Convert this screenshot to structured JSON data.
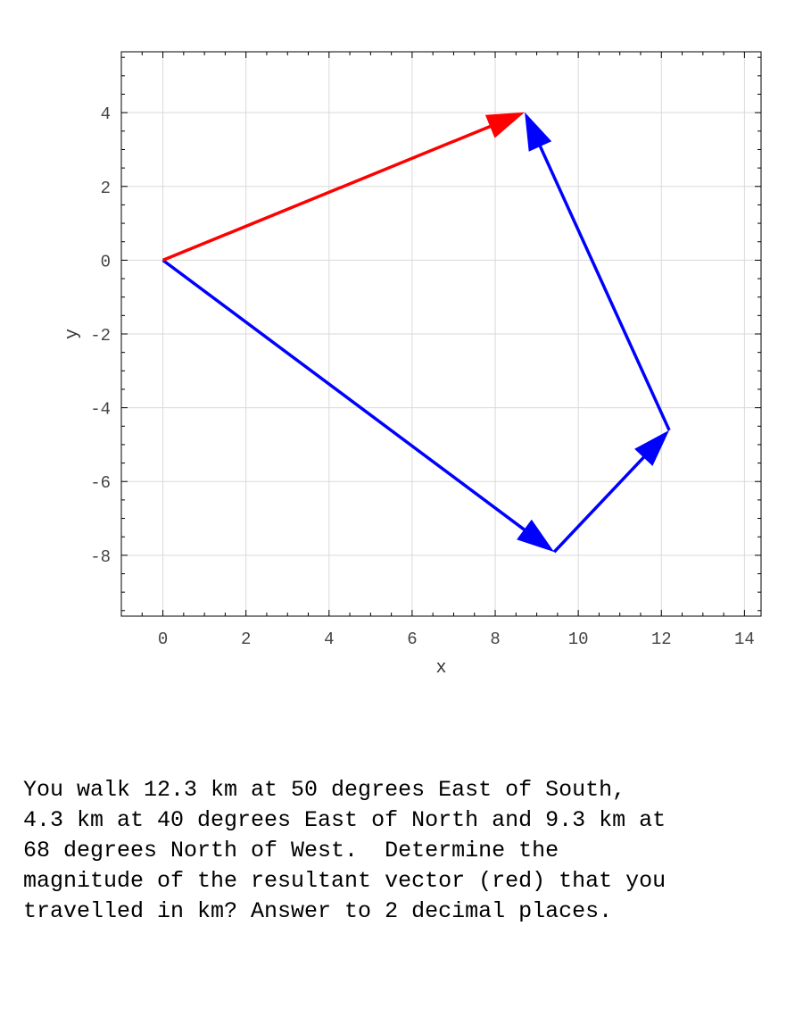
{
  "chart_data": {
    "type": "vector-plot",
    "xlabel": "x",
    "ylabel": "y",
    "xlim": [
      -1,
      14.4
    ],
    "ylim": [
      -9.65,
      5.65
    ],
    "xticks": [
      0,
      2,
      4,
      6,
      8,
      10,
      12,
      14
    ],
    "yticks": [
      4,
      2,
      0,
      -2,
      -4,
      -6,
      -8
    ],
    "grid": true,
    "vectors": [
      {
        "from": [
          0,
          0
        ],
        "to": [
          9.42,
          -7.91
        ],
        "color": "#0000ff"
      },
      {
        "from": [
          9.42,
          -7.91
        ],
        "to": [
          12.19,
          -4.61
        ],
        "color": "#0000ff"
      },
      {
        "from": [
          12.19,
          -4.61
        ],
        "to": [
          8.71,
          4.01
        ],
        "color": "#0000ff"
      },
      {
        "from": [
          0,
          0
        ],
        "to": [
          8.71,
          4.01
        ],
        "color": "#ff0000"
      }
    ]
  },
  "question": {
    "lines": [
      "You walk 12.3 km at 50 degrees East of South,",
      "4.3 km at 40 degrees East of North and 9.3 km at",
      "68 degrees North of West.  Determine the",
      "magnitude of the resultant vector (red) that you",
      "travelled in km? Answer to 2 decimal places."
    ]
  }
}
